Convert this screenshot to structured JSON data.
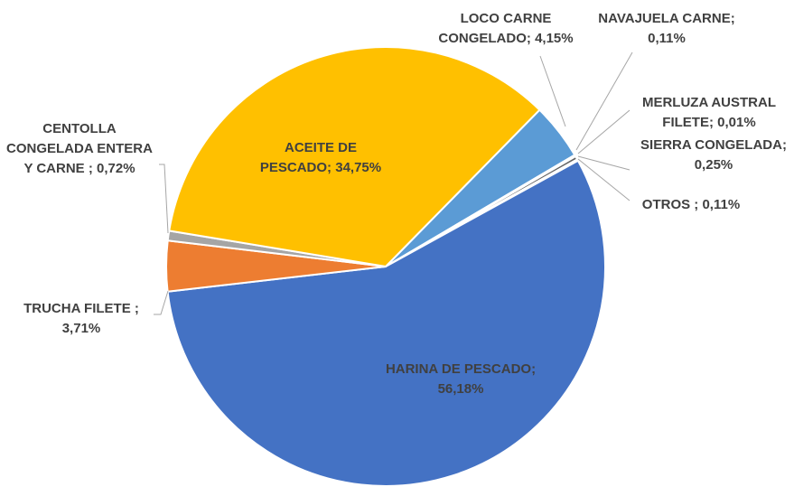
{
  "chart_data": {
    "type": "pie",
    "categories": [
      "LOCO CARNE CONGELADO;",
      "NAVAJUELA CARNE;",
      "MERLUZA AUSTRAL FILETE;",
      "SIERRA CONGELADA;",
      "OTROS ;",
      "HARINA DE PESCADO;",
      "TRUCHA FILETE ;",
      "CENTOLLA CONGELADA ENTERA Y CARNE ;",
      "ACEITE DE PESCADO;"
    ],
    "values": [
      4.15,
      0.11,
      0.01,
      0.25,
      0.11,
      56.18,
      3.71,
      0.72,
      34.75
    ],
    "value_labels": [
      "4,15%",
      "0,11%",
      "0,01%",
      "0,25%",
      "0,11%",
      "56,18%",
      "3,71%",
      "0,72%",
      "34,75%"
    ],
    "colors": [
      "#5b9bd5",
      "#264478",
      "#9e480e",
      "#636363",
      "#997300",
      "#4472c4",
      "#ed7d31",
      "#a5a5a5",
      "#ffc000"
    ]
  }
}
